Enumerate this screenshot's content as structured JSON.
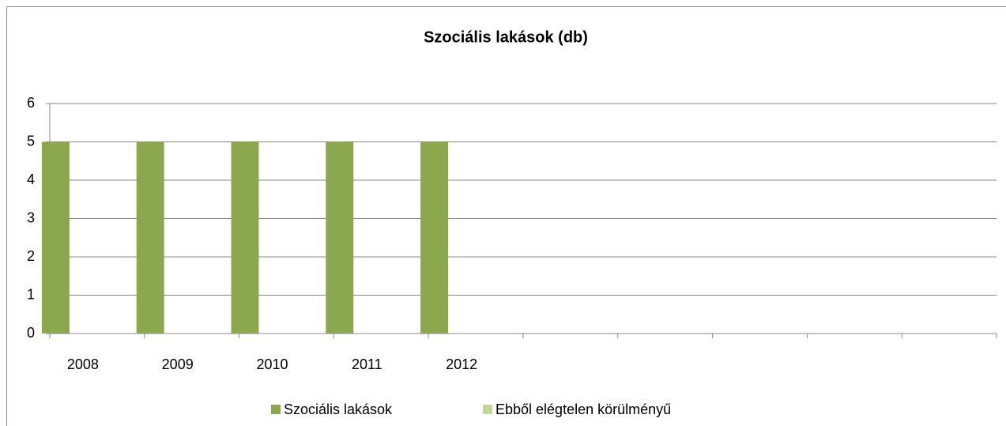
{
  "chart_data": {
    "type": "bar",
    "title": "Szociális lakások (db)",
    "categories": [
      "2008",
      "2009",
      "2010",
      "2011",
      "2012",
      null,
      null,
      null,
      null,
      null
    ],
    "series": [
      {
        "name": "Szociális lakások",
        "color": "#8ca84e",
        "values": [
          5,
          5,
          5,
          5,
          5,
          null,
          null,
          null,
          null,
          null
        ]
      },
      {
        "name": "Ebből elégtelen körülményű",
        "color": "#c3d69b",
        "values": [
          0,
          0,
          0,
          0,
          0,
          null,
          null,
          null,
          null,
          null
        ]
      }
    ],
    "ylim": [
      0,
      6
    ],
    "yticks": [
      0,
      1,
      2,
      3,
      4,
      5,
      6
    ],
    "grid": true,
    "legend": "bottom"
  }
}
